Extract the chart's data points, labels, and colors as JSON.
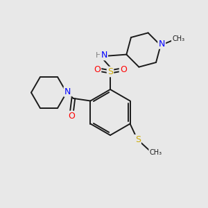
{
  "bg_color": "#e8e8e8",
  "bond_color": "#1a1a1a",
  "atom_colors": {
    "N": "#0000ff",
    "O": "#ff0000",
    "S": "#ccaa00",
    "S2": "#ccaa00",
    "H": "#808080",
    "C": "#1a1a1a"
  },
  "figsize": [
    3.0,
    3.0
  ],
  "dpi": 100
}
